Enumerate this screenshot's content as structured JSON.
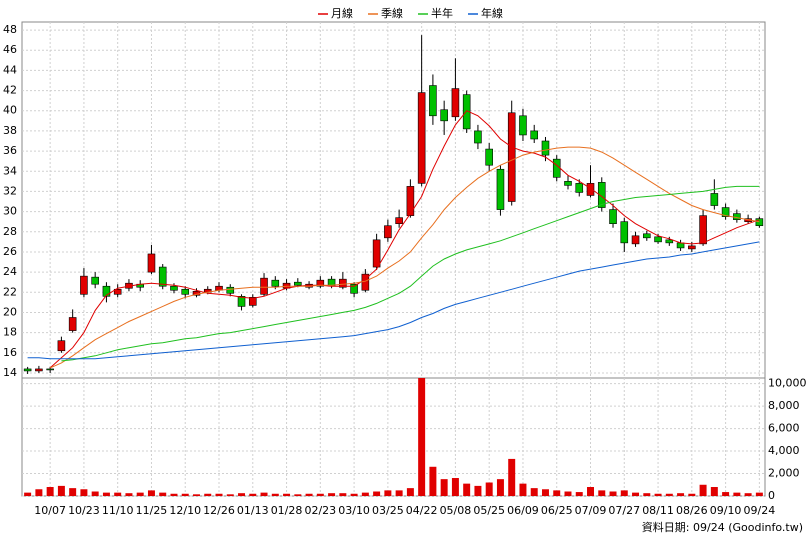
{
  "chart_data": {
    "type": "candlestick",
    "categories": [
      null,
      null,
      "10/07",
      null,
      null,
      "10/23",
      null,
      null,
      "11/10",
      null,
      null,
      "11/25",
      null,
      null,
      "12/10",
      null,
      null,
      "12/26",
      null,
      null,
      "01/13",
      null,
      null,
      "01/28",
      null,
      null,
      "02/23",
      null,
      null,
      "03/10",
      null,
      null,
      "03/25",
      null,
      null,
      "04/22",
      null,
      null,
      "05/08",
      null,
      null,
      "05/25",
      null,
      null,
      "06/09",
      null,
      null,
      "06/25",
      null,
      null,
      "07/09",
      null,
      null,
      "07/27",
      null,
      null,
      "08/11",
      null,
      null,
      "08/26",
      null,
      null,
      "09/10",
      null,
      null,
      "09/24"
    ],
    "open": [
      14.4,
      14.2,
      14.4,
      16.2,
      18.2,
      21.8,
      23.5,
      22.6,
      21.8,
      22.4,
      22.8,
      24.0,
      24.5,
      22.6,
      22.3,
      21.7,
      22.0,
      22.2,
      22.5,
      21.6,
      20.7,
      21.8,
      23.2,
      22.4,
      23.0,
      22.5,
      22.6,
      23.3,
      22.5,
      22.8,
      22.2,
      24.5,
      27.4,
      28.8,
      29.6,
      32.8,
      42.5,
      40.1,
      39.4,
      41.6,
      38.0,
      36.2,
      34.2,
      31.0,
      39.5,
      38.0,
      37.0,
      35.2,
      33.0,
      32.8,
      31.6,
      32.9,
      30.2,
      29.0,
      26.8,
      27.8,
      27.5,
      27.2,
      26.9,
      26.3,
      26.8,
      31.8,
      30.4,
      29.8,
      29.0,
      29.3
    ],
    "high": [
      14.6,
      14.7,
      14.6,
      17.6,
      20.3,
      24.4,
      24.0,
      23.0,
      22.8,
      23.3,
      23.2,
      26.7,
      24.8,
      22.9,
      22.6,
      22.4,
      22.6,
      23.0,
      22.8,
      21.8,
      21.8,
      23.9,
      23.6,
      23.3,
      23.4,
      23.1,
      23.6,
      23.6,
      24.0,
      23.0,
      24.3,
      27.8,
      29.2,
      30.2,
      33.2,
      47.5,
      43.6,
      41.0,
      45.2,
      42.0,
      38.6,
      36.8,
      34.6,
      41.0,
      40.2,
      38.6,
      37.4,
      35.6,
      33.6,
      33.2,
      34.6,
      33.4,
      30.8,
      29.4,
      28.0,
      28.1,
      27.8,
      27.5,
      27.2,
      27.0,
      30.2,
      33.2,
      30.8,
      30.2,
      29.7,
      29.5
    ],
    "low": [
      13.9,
      14.0,
      14.0,
      16.0,
      18.0,
      21.5,
      22.4,
      21.0,
      21.5,
      22.1,
      22.1,
      23.8,
      22.3,
      21.9,
      21.4,
      21.5,
      21.8,
      22.0,
      21.6,
      20.2,
      20.5,
      21.6,
      22.3,
      22.2,
      22.5,
      22.3,
      22.4,
      22.4,
      22.3,
      21.5,
      22.0,
      24.2,
      27.0,
      28.4,
      29.4,
      32.5,
      38.6,
      37.6,
      39.0,
      37.8,
      36.2,
      34.0,
      29.6,
      30.6,
      37.0,
      36.8,
      35.0,
      33.0,
      32.2,
      31.5,
      31.4,
      30.0,
      28.4,
      26.0,
      26.5,
      27.1,
      26.8,
      26.6,
      26.1,
      26.0,
      26.6,
      30.2,
      29.2,
      28.9,
      28.8,
      28.4
    ],
    "close": [
      14.2,
      14.4,
      14.3,
      17.2,
      19.5,
      23.6,
      22.8,
      21.6,
      22.3,
      22.9,
      22.5,
      25.8,
      22.6,
      22.2,
      21.8,
      22.1,
      22.3,
      22.6,
      21.9,
      20.6,
      21.5,
      23.4,
      22.6,
      22.9,
      22.7,
      22.8,
      23.2,
      22.6,
      23.3,
      21.9,
      23.8,
      27.2,
      28.6,
      29.4,
      32.5,
      41.8,
      39.5,
      39.0,
      42.2,
      38.2,
      36.8,
      34.6,
      30.2,
      39.8,
      37.6,
      37.2,
      35.6,
      33.4,
      32.6,
      31.9,
      32.8,
      30.4,
      28.8,
      26.9,
      27.6,
      27.4,
      27.0,
      26.9,
      26.4,
      26.6,
      29.6,
      30.6,
      29.5,
      29.2,
      29.3,
      28.6
    ],
    "up_color": "#e00000",
    "down_color": "#00c000",
    "series": [
      {
        "name": "月線",
        "color": "#e00000",
        "values": [
          null,
          null,
          14.5,
          15.5,
          16.5,
          18.0,
          20.2,
          21.7,
          22.4,
          22.6,
          22.8,
          22.9,
          22.8,
          22.7,
          22.5,
          22.2,
          21.9,
          21.8,
          21.7,
          21.5,
          21.4,
          21.6,
          22.0,
          22.4,
          22.6,
          22.7,
          22.7,
          22.6,
          22.6,
          22.6,
          23.3,
          24.3,
          26.2,
          28.2,
          29.8,
          31.5,
          34.2,
          36.5,
          38.6,
          40.0,
          39.5,
          38.5,
          37.2,
          36.4,
          36.0,
          35.8,
          35.4,
          34.6,
          33.6,
          33.0,
          32.3,
          31.5,
          30.6,
          29.6,
          28.8,
          28.2,
          27.6,
          27.3,
          26.9,
          26.8,
          26.9,
          27.4,
          27.9,
          28.4,
          28.8,
          29.2
        ]
      },
      {
        "name": "季線",
        "color": "#e87020",
        "values": [
          null,
          null,
          14.5,
          15.0,
          15.7,
          16.5,
          17.3,
          17.9,
          18.5,
          19.1,
          19.6,
          20.1,
          20.6,
          21.1,
          21.5,
          21.8,
          22.0,
          22.2,
          22.3,
          22.4,
          22.5,
          22.5,
          22.5,
          22.6,
          22.6,
          22.6,
          22.7,
          22.7,
          22.8,
          22.9,
          23.1,
          23.6,
          24.4,
          25.1,
          26.0,
          27.4,
          28.7,
          30.2,
          31.4,
          32.4,
          33.3,
          34.0,
          34.6,
          35.1,
          35.6,
          35.9,
          36.1,
          36.3,
          36.4,
          36.4,
          36.3,
          35.9,
          35.3,
          34.6,
          33.9,
          33.2,
          32.5,
          31.8,
          31.2,
          30.6,
          30.2,
          29.9,
          29.6,
          29.4,
          29.2,
          29.0
        ]
      },
      {
        "name": "半年",
        "color": "#20c020",
        "values": [
          null,
          null,
          null,
          15.2,
          15.3,
          15.5,
          15.7,
          16.0,
          16.3,
          16.5,
          16.7,
          16.9,
          17.0,
          17.2,
          17.4,
          17.5,
          17.7,
          17.9,
          18.0,
          18.2,
          18.4,
          18.6,
          18.8,
          19.0,
          19.2,
          19.4,
          19.6,
          19.8,
          20.0,
          20.2,
          20.5,
          20.9,
          21.4,
          21.9,
          22.6,
          23.6,
          24.6,
          25.3,
          25.8,
          26.2,
          26.5,
          26.8,
          27.1,
          27.5,
          27.9,
          28.3,
          28.7,
          29.1,
          29.5,
          29.9,
          30.3,
          30.7,
          31.0,
          31.2,
          31.4,
          31.5,
          31.6,
          31.7,
          31.8,
          31.9,
          32.0,
          32.2,
          32.4,
          32.5,
          32.5,
          32.5
        ]
      },
      {
        "name": "年線",
        "color": "#1060d0",
        "values": [
          15.5,
          15.5,
          15.4,
          15.4,
          15.4,
          15.4,
          15.4,
          15.5,
          15.6,
          15.7,
          15.8,
          15.9,
          16.0,
          16.1,
          16.2,
          16.3,
          16.4,
          16.5,
          16.6,
          16.7,
          16.8,
          16.9,
          17.0,
          17.1,
          17.2,
          17.3,
          17.4,
          17.5,
          17.6,
          17.7,
          17.9,
          18.1,
          18.3,
          18.6,
          19.0,
          19.5,
          19.9,
          20.4,
          20.8,
          21.1,
          21.4,
          21.7,
          22.0,
          22.3,
          22.6,
          22.9,
          23.2,
          23.5,
          23.8,
          24.1,
          24.3,
          24.5,
          24.7,
          24.9,
          25.1,
          25.3,
          25.4,
          25.5,
          25.7,
          25.8,
          26.0,
          26.2,
          26.4,
          26.6,
          26.8,
          27.0
        ]
      }
    ],
    "volume": {
      "axis": "y2",
      "color": "#e00000",
      "values": [
        300,
        600,
        800,
        900,
        700,
        600,
        400,
        300,
        300,
        250,
        300,
        500,
        300,
        200,
        200,
        150,
        200,
        200,
        150,
        250,
        200,
        300,
        200,
        200,
        150,
        200,
        200,
        250,
        250,
        200,
        300,
        400,
        500,
        500,
        700,
        10500,
        2600,
        1500,
        1600,
        1100,
        900,
        1200,
        1500,
        3300,
        1100,
        700,
        600,
        500,
        400,
        350,
        800,
        500,
        400,
        500,
        300,
        250,
        200,
        200,
        250,
        200,
        1000,
        800,
        350,
        300,
        250,
        300
      ]
    },
    "ylim": [
      13.5,
      48.8
    ],
    "yticks": [
      14,
      16,
      18,
      20,
      22,
      24,
      26,
      28,
      30,
      32,
      34,
      36,
      38,
      40,
      42,
      44,
      46,
      48
    ],
    "y2lim": [
      0,
      10500
    ],
    "y2ticks": [
      0,
      {
        "value": 2000,
        "label": "2,000"
      },
      {
        "value": 4000,
        "label": "4,000"
      },
      {
        "value": 6000,
        "label": "6,000"
      },
      {
        "value": 8000,
        "label": "8,000"
      },
      {
        "value": 10000,
        "label": "10,000"
      }
    ],
    "grid": true,
    "legend": "top",
    "footnote": "資料日期: 09/24  (Goodinfo.tw)"
  }
}
